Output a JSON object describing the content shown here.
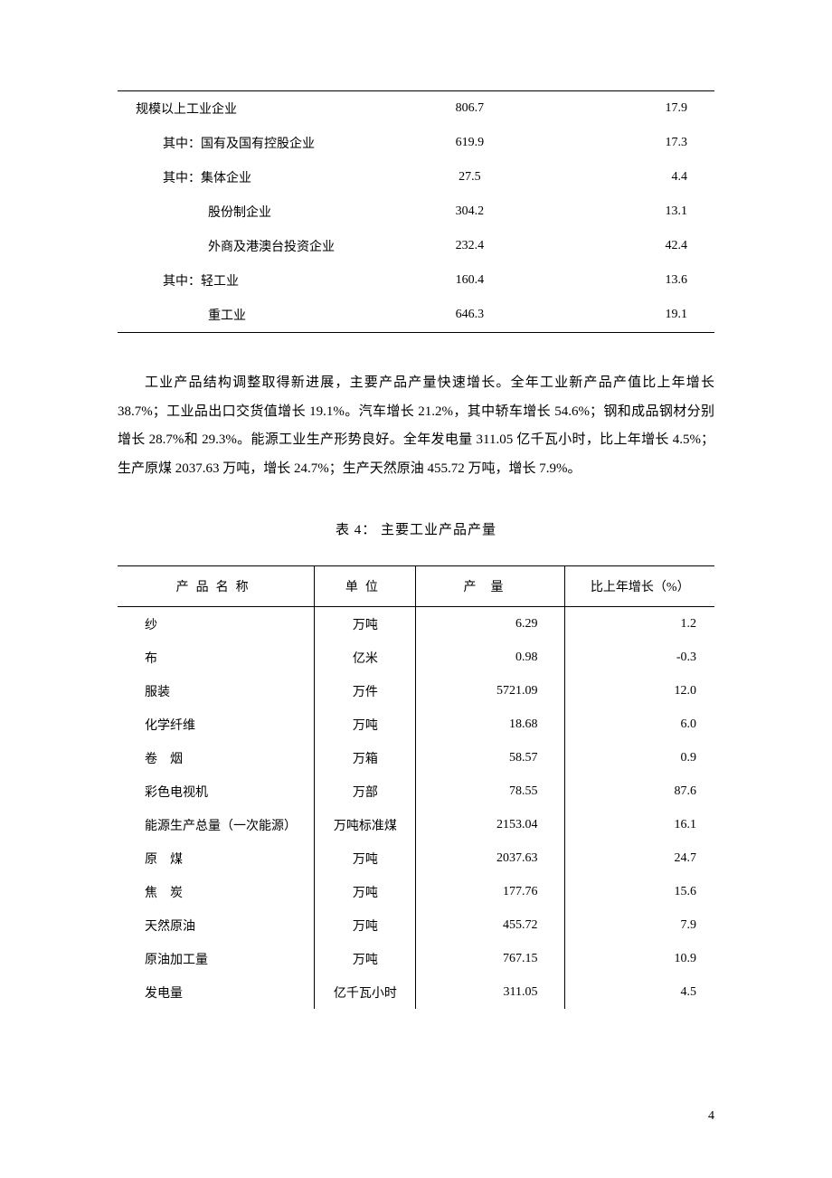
{
  "table1": {
    "rows": [
      {
        "label": "规模以上工业企业",
        "indent": 0,
        "val1": "806.7",
        "val2": "17.9"
      },
      {
        "label": "其中：国有及国有控股企业",
        "indent": 1,
        "val1": "619.9",
        "val2": "17.3"
      },
      {
        "label": "其中：集体企业",
        "indent": 1,
        "val1": "27.5",
        "val2": "4.4"
      },
      {
        "label": "股份制企业",
        "indent": 2,
        "val1": "304.2",
        "val2": "13.1"
      },
      {
        "label": "外商及港澳台投资企业",
        "indent": 2,
        "val1": "232.4",
        "val2": "42.4"
      },
      {
        "label": "其中：轻工业",
        "indent": 1,
        "val1": "160.4",
        "val2": "13.6"
      },
      {
        "label": "重工业",
        "indent": 2,
        "val1": "646.3",
        "val2": "19.1"
      }
    ]
  },
  "paragraph_text": "工业产品结构调整取得新进展，主要产品产量快速增长。全年工业新产品产值比上年增长 38.7%；工业品出口交货值增长 19.1%。汽车增长 21.2%，其中轿车增长 54.6%；钢和成品钢材分别增长 28.7%和 29.3%。能源工业生产形势良好。全年发电量 311.05 亿千瓦小时，比上年增长 4.5%；生产原煤 2037.63 万吨，增长 24.7%；生产天然原油 455.72 万吨，增长 7.9%。",
  "table2_caption": "表 4：   主要工业产品产量",
  "table2": {
    "headers": {
      "c1": "产品名称",
      "c2": "单位",
      "c3": "产量",
      "c4": "比上年增长（%）"
    },
    "rows": [
      {
        "name": "纱",
        "unit": "万吨",
        "output": "6.29",
        "growth": "1.2"
      },
      {
        "name": "布",
        "unit": "亿米",
        "output": "0.98",
        "growth": "-0.3"
      },
      {
        "name": "服装",
        "unit": "万件",
        "output": "5721.09",
        "growth": "12.0"
      },
      {
        "name": "化学纤维",
        "unit": "万吨",
        "output": "18.68",
        "growth": "6.0"
      },
      {
        "name": "卷　烟",
        "unit": "万箱",
        "output": "58.57",
        "growth": "0.9"
      },
      {
        "name": "彩色电视机",
        "unit": "万部",
        "output": "78.55",
        "growth": "87.6"
      },
      {
        "name": "能源生产总量（一次能源）",
        "unit": "万吨标准煤",
        "output": "2153.04",
        "growth": "16.1"
      },
      {
        "name": "原　煤",
        "unit": "万吨",
        "output": "2037.63",
        "growth": "24.7"
      },
      {
        "name": "焦　炭",
        "unit": "万吨",
        "output": "177.76",
        "growth": "15.6"
      },
      {
        "name": "天然原油",
        "unit": "万吨",
        "output": "455.72",
        "growth": "7.9"
      },
      {
        "name": "原油加工量",
        "unit": "万吨",
        "output": "767.15",
        "growth": "10.9"
      },
      {
        "name": "发电量",
        "unit": "亿千瓦小时",
        "output": "311.05",
        "growth": "4.5"
      }
    ]
  },
  "page_number": "4"
}
